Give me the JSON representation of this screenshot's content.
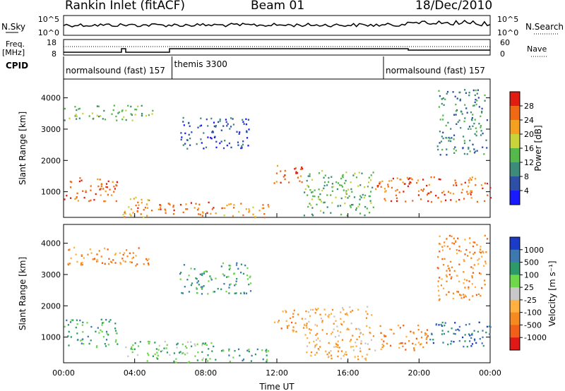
{
  "header": {
    "station": "Rankin Inlet (fitACF)",
    "beam": "Beam 01",
    "date": "18/Dec/2010"
  },
  "labels": {
    "nsky": "N.Sky",
    "nsearch": "N.Search",
    "freq": "Freq.",
    "mhz": "[MHz]",
    "nave": "Nave",
    "cpid": "CPID"
  },
  "ticks": {
    "count_top": "10^5",
    "count_bottom": "10^0",
    "freq_top": "18",
    "freq_bottom": "8",
    "nave_top": "60",
    "nave_bottom": "0"
  },
  "cpid_segments": [
    {
      "label": "normalsound (fast) 157",
      "start_h": 0.0,
      "end_h": 6.1
    },
    {
      "label": "themis 3300",
      "start_h": 6.1,
      "end_h": 18.0
    },
    {
      "label": "normalsound (fast) 157",
      "start_h": 18.0,
      "end_h": 24.0
    }
  ],
  "chart_data": [
    {
      "type": "heatmap",
      "name": "power",
      "ylabel": "Slant Range [km]",
      "ylim": [
        180,
        4600
      ],
      "yticks": [
        "1000",
        "2000",
        "3000",
        "4000"
      ],
      "colorbar_label": "Power [dB]",
      "colorbar_ticks": [
        "4",
        "8",
        "12",
        "16",
        "20",
        "24",
        "28"
      ],
      "colorbar_range": [
        0,
        32
      ],
      "colors": [
        "#1a1aff",
        "#2e4fa6",
        "#3d8c7a",
        "#55b84a",
        "#c8d43a",
        "#f5a020",
        "#f06a15",
        "#e01d10"
      ],
      "clusters": [
        {
          "t": [
            0.0,
            3.0
          ],
          "r": [
            700,
            1500
          ],
          "level": 28
        },
        {
          "t": [
            3.3,
            4.8
          ],
          "r": [
            200,
            900
          ],
          "level": 24
        },
        {
          "t": [
            4.0,
            8.5
          ],
          "r": [
            250,
            700
          ],
          "level": 26
        },
        {
          "t": [
            8.5,
            11.5
          ],
          "r": [
            200,
            650
          ],
          "level": 22
        },
        {
          "t": [
            11.8,
            13.5
          ],
          "r": [
            1300,
            1900
          ],
          "level": 26
        },
        {
          "t": [
            13.5,
            17.5
          ],
          "r": [
            250,
            1700
          ],
          "level": 16
        },
        {
          "t": [
            17.5,
            24.0
          ],
          "r": [
            700,
            1500
          ],
          "level": 28
        },
        {
          "t": [
            0.0,
            5.0
          ],
          "r": [
            3300,
            3800
          ],
          "level": 16
        },
        {
          "t": [
            6.5,
            10.5
          ],
          "r": [
            2400,
            3400
          ],
          "level": 8
        },
        {
          "t": [
            21.0,
            23.8
          ],
          "r": [
            2200,
            4300
          ],
          "level": 12
        }
      ]
    },
    {
      "type": "heatmap",
      "name": "velocity",
      "ylabel": "Slant Range [km]",
      "ylim": [
        180,
        4600
      ],
      "yticks": [
        "1000",
        "2000",
        "3000",
        "4000"
      ],
      "colorbar_label": "Velocity [m s⁻¹]",
      "colorbar_ticks": [
        "1000",
        "500",
        "100",
        "25",
        "-25",
        "-100",
        "-500",
        "-1000"
      ],
      "colors": [
        "#1a3cc8",
        "#3d78b0",
        "#2e9a6a",
        "#6ed84a",
        "#c8c8c8",
        "#ffb040",
        "#f58a20",
        "#f06018",
        "#e01818"
      ],
      "clusters": [
        {
          "t": [
            0.0,
            3.0
          ],
          "r": [
            700,
            1600
          ],
          "level": 100
        },
        {
          "t": [
            3.3,
            8.5
          ],
          "r": [
            200,
            900
          ],
          "level": 25
        },
        {
          "t": [
            8.5,
            11.5
          ],
          "r": [
            200,
            650
          ],
          "level": 100
        },
        {
          "t": [
            11.8,
            13.5
          ],
          "r": [
            1200,
            1900
          ],
          "level": -500
        },
        {
          "t": [
            13.5,
            17.5
          ],
          "r": [
            250,
            2000
          ],
          "level": -100
        },
        {
          "t": [
            17.5,
            20.5
          ],
          "r": [
            600,
            1400
          ],
          "level": -500
        },
        {
          "t": [
            20.5,
            24.0
          ],
          "r": [
            700,
            1500
          ],
          "level": 500
        },
        {
          "t": [
            0.0,
            5.0
          ],
          "r": [
            3300,
            3900
          ],
          "level": -500
        },
        {
          "t": [
            6.5,
            10.5
          ],
          "r": [
            2400,
            3400
          ],
          "level": 100
        },
        {
          "t": [
            21.0,
            23.8
          ],
          "r": [
            2200,
            4300
          ],
          "level": -500
        }
      ]
    }
  ],
  "xaxis": {
    "label": "Time UT",
    "range_h": [
      0,
      24
    ],
    "ticks": [
      "00:00",
      "04:00",
      "08:00",
      "12:00",
      "16:00",
      "20:00",
      "00:00"
    ]
  },
  "panel_symbol_colors": {
    "scatter": "#000000"
  }
}
